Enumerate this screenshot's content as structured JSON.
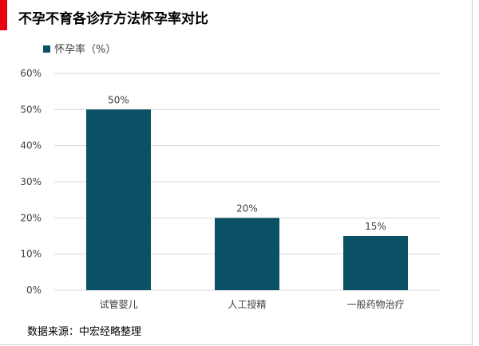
{
  "title": "不孕不育各诊疗方法怀孕率对比",
  "source": "数据来源：中宏经略整理",
  "colors": {
    "accent": "#e60012",
    "bar": "#0b5166",
    "grid": "#d9d9d9",
    "text": "#404040"
  },
  "chart_data": {
    "type": "bar",
    "categories": [
      "试管婴儿",
      "人工授精",
      "一般药物治疗"
    ],
    "series": [
      {
        "name": "怀孕率（%）",
        "values": [
          50,
          20,
          15
        ]
      }
    ],
    "data_labels": [
      "50%",
      "20%",
      "15%"
    ],
    "yticks": [
      "0%",
      "10%",
      "20%",
      "30%",
      "40%",
      "50%",
      "60%"
    ],
    "ylim": [
      0,
      60
    ],
    "grid": true,
    "legend": "top-left"
  }
}
